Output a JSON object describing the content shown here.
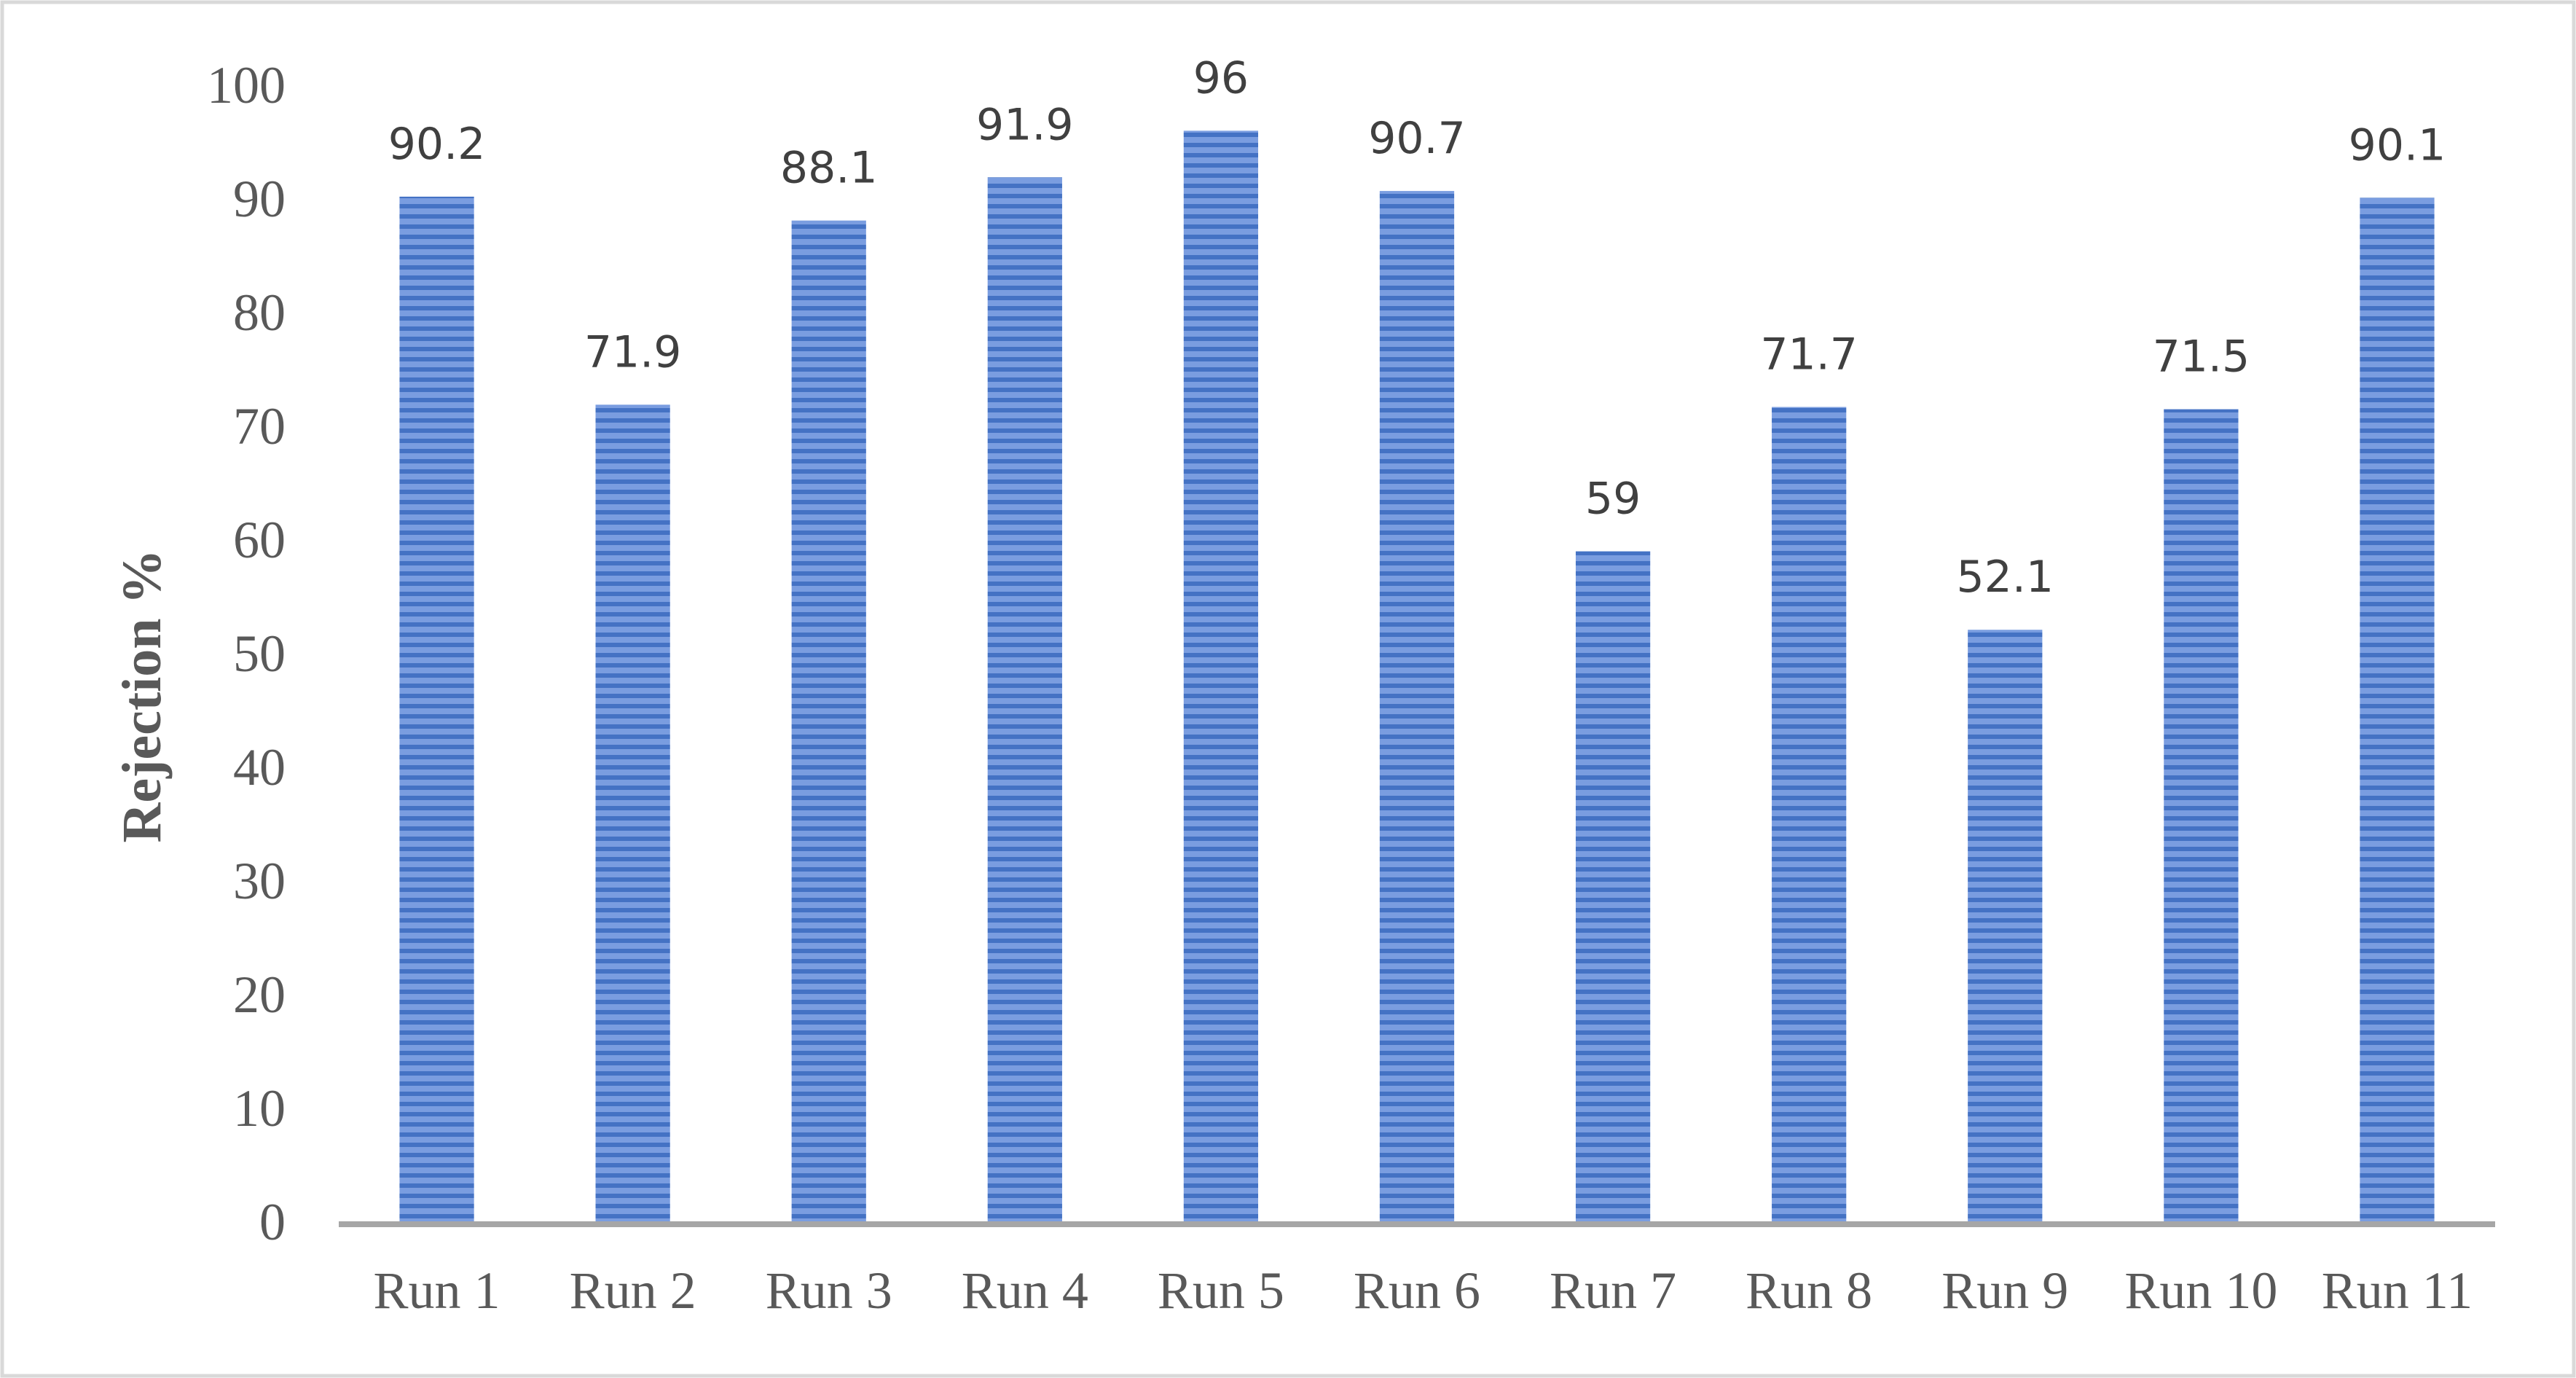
{
  "chart_data": {
    "type": "bar",
    "categories": [
      "Run 1",
      "Run 2",
      "Run 3",
      "Run 4",
      "Run 5",
      "Run 6",
      "Run 7",
      "Run 8",
      "Run 9",
      "Run 10",
      "Run 11"
    ],
    "values": [
      90.2,
      71.9,
      88.1,
      91.9,
      96,
      90.7,
      59,
      71.7,
      52.1,
      71.5,
      90.1
    ],
    "data_labels": [
      "90.2",
      "71.9",
      "88.1",
      "91.9",
      "96",
      "90.7",
      "59",
      "71.7",
      "52.1",
      "71.5",
      "90.1"
    ],
    "title": "",
    "xlabel": "",
    "ylabel": "Rejection %",
    "ylim": [
      0,
      100
    ],
    "yticks": [
      "0",
      "10",
      "20",
      "30",
      "40",
      "50",
      "60",
      "70",
      "80",
      "90",
      "100"
    ],
    "grid": false,
    "legend": "none",
    "bar_color": "#4472c4",
    "bar_pattern": "horizontal-stripes",
    "axis_color": "#a6a6a6",
    "border_color": "#d9d9d9"
  }
}
